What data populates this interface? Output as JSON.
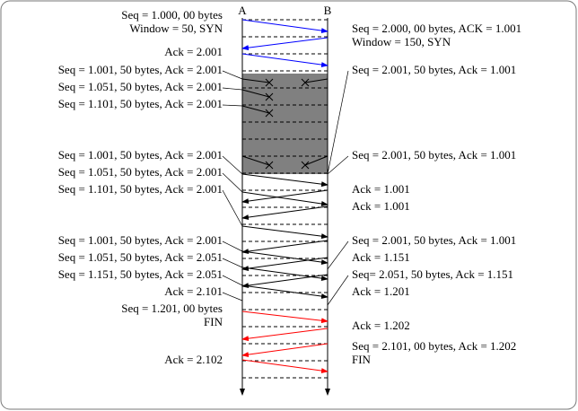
{
  "participants": [
    "A",
    "B"
  ],
  "left_labels": [
    "Seq = 1.000, 00 bytes",
    "Window = 50, SYN",
    "Ack = 2.001",
    "Seq = 1.001, 50 bytes, Ack = 2.001",
    "Seq = 1.051, 50 bytes, Ack = 2.001",
    "Seq = 1.101, 50 bytes, Ack = 2.001",
    "Seq = 1.001, 50 bytes, Ack = 2.001",
    "Seq = 1.051, 50 bytes, Ack = 2.001",
    "Seq = 1.101, 50 bytes, Ack = 2.001",
    "Seq = 1.001, 50 bytes, Ack = 2.001",
    "Seq = 1.051, 50 bytes, Ack = 2.051",
    "Seq = 1.151, 50 bytes, Ack = 2.051",
    "Ack = 2.101",
    "Seq = 1.201, 00 bytes",
    "FIN",
    "Ack = 2.102"
  ],
  "right_labels": [
    "Seq = 2.000, 00 bytes, ACK = 1.001",
    "Window = 150, SYN",
    "Seq = 2.001, 50 bytes, Ack = 1.001",
    "Seq = 2.001, 50 bytes, Ack = 1.001",
    "Ack = 1.001",
    "Ack = 1.001",
    "Seq = 2.001, 50 bytes, Ack = 1.001",
    "Ack = 1.151",
    "Seq= 2.051, 50 bytes, Ack = 1.151",
    "Ack = 1.201",
    "Ack = 1.202",
    "Seq = 2.101, 00 bytes, Ack = 1.202",
    "FIN"
  ]
}
